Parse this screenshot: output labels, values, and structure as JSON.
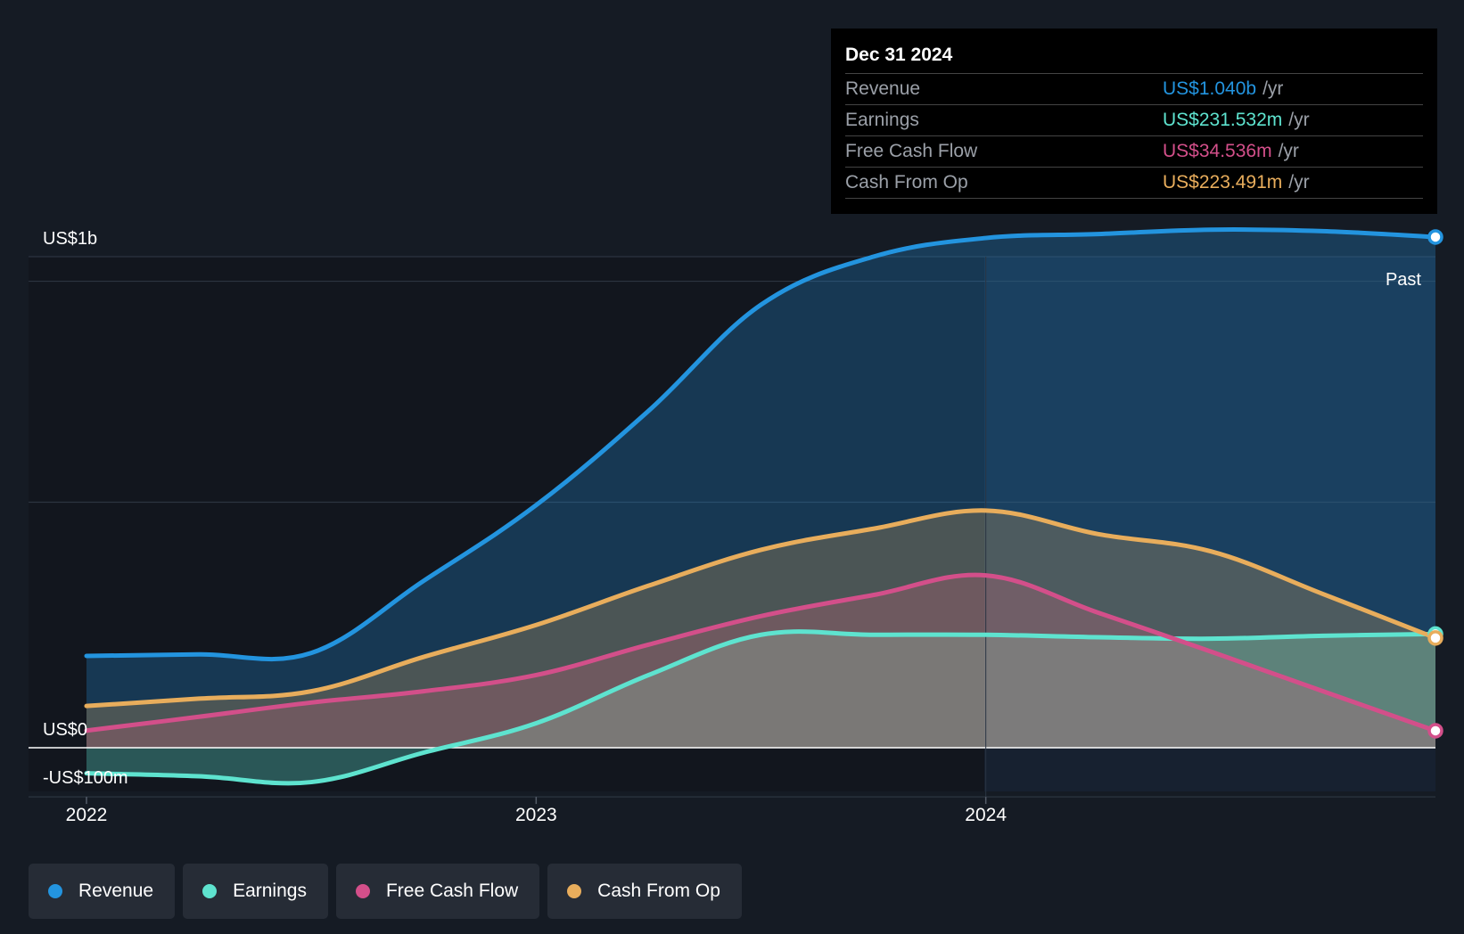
{
  "chart_data": {
    "type": "line",
    "title": "",
    "x": [
      2022.0,
      2022.25,
      2022.5,
      2022.75,
      2023.0,
      2023.25,
      2023.5,
      2023.75,
      2024.0,
      2024.25,
      2024.5,
      2024.75,
      2025.0
    ],
    "x_ticks": [
      {
        "value": 2022,
        "label": "2022"
      },
      {
        "value": 2023,
        "label": "2023"
      },
      {
        "value": 2024,
        "label": "2024"
      }
    ],
    "y_labels": [
      {
        "value": 1000,
        "label": "US$1b"
      },
      {
        "value": 0,
        "label": "US$0"
      },
      {
        "value": -100,
        "label": "-US$100m"
      }
    ],
    "ylim": [
      -100,
      1000
    ],
    "gridlines": [
      1000,
      950,
      500,
      0,
      -100
    ],
    "series": [
      {
        "name": "Revenue",
        "color": "#2394df",
        "values": [
          187,
          190,
          193,
          340,
          494,
          686,
          902,
          1000,
          1038,
          1046,
          1055,
          1052,
          1040
        ]
      },
      {
        "name": "Earnings",
        "color": "#5ee3cf",
        "values": [
          -52,
          -58,
          -70,
          -10,
          50,
          148,
          230,
          230,
          230,
          225,
          222,
          228,
          231.532
        ]
      },
      {
        "name": "Free Cash Flow",
        "color": "#d34f8a",
        "values": [
          35,
          63,
          92,
          115,
          148,
          210,
          268,
          311,
          351,
          275,
          196,
          115,
          34.536
        ]
      },
      {
        "name": "Cash From Op",
        "color": "#e8ad5c",
        "values": [
          85,
          100,
          115,
          185,
          250,
          330,
          403,
          446,
          483,
          435,
          400,
          313,
          223.491
        ]
      }
    ],
    "forecast_split": 2024,
    "past_label": "Past"
  },
  "tooltip": {
    "date": "Dec 31 2024",
    "unit": "/yr",
    "rows": [
      {
        "name": "Revenue",
        "value": "US$1.040b",
        "color": "#2394df"
      },
      {
        "name": "Earnings",
        "value": "US$231.532m",
        "color": "#5ee3cf"
      },
      {
        "name": "Free Cash Flow",
        "value": "US$34.536m",
        "color": "#d34f8a"
      },
      {
        "name": "Cash From Op",
        "value": "US$223.491m",
        "color": "#e8ad5c"
      }
    ]
  },
  "legend": [
    {
      "label": "Revenue",
      "color": "#2394df"
    },
    {
      "label": "Earnings",
      "color": "#5ee3cf"
    },
    {
      "label": "Free Cash Flow",
      "color": "#d34f8a"
    },
    {
      "label": "Cash From Op",
      "color": "#e8ad5c"
    }
  ]
}
